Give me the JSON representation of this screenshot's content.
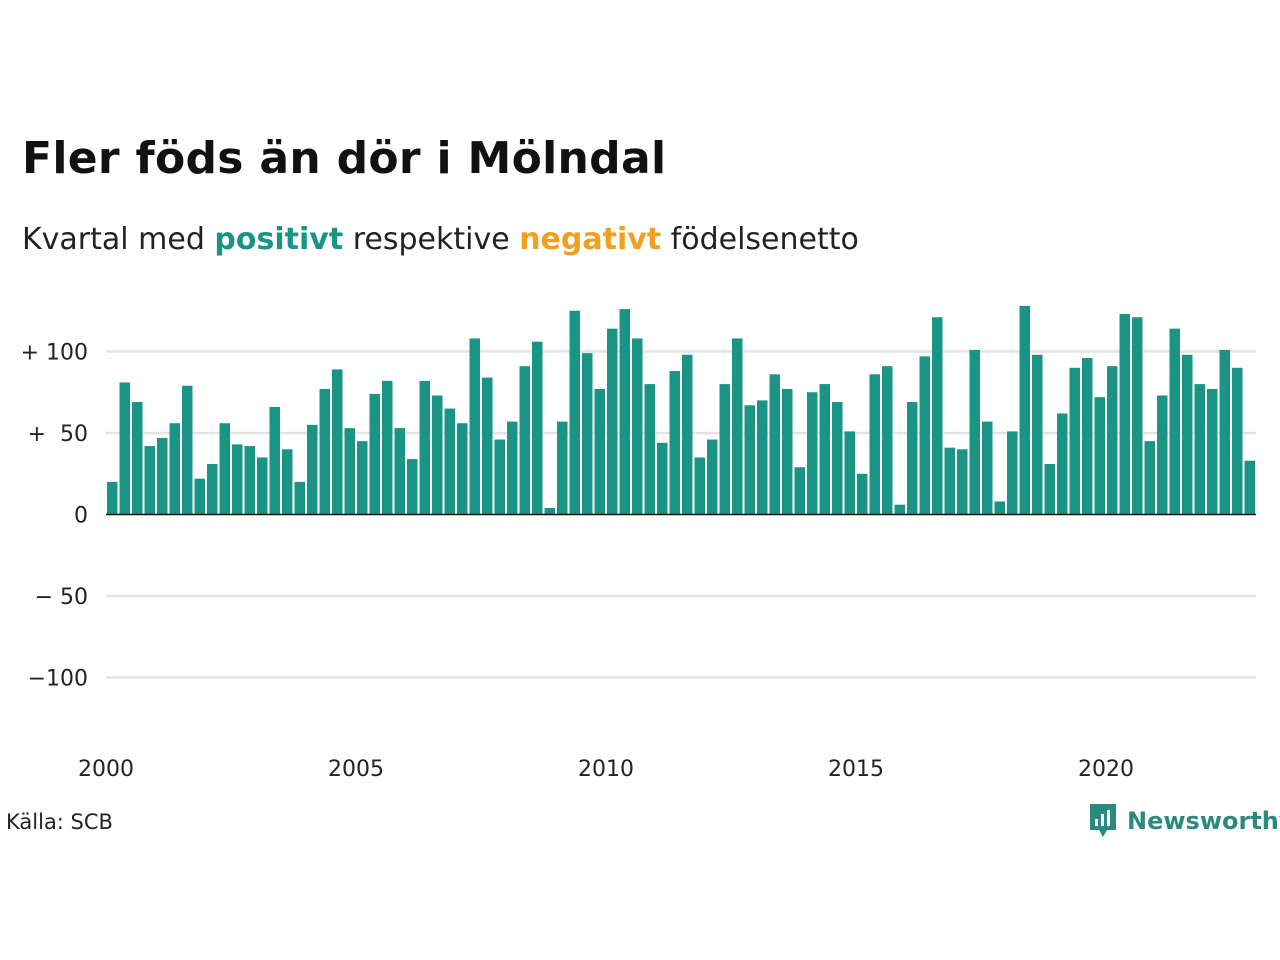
{
  "title": "Fler föds än dör i Mölndal",
  "subtitle": {
    "before": "Kvartal med ",
    "positive": "positivt",
    "middle": " respektive ",
    "negative": "negativt",
    "after": " födelsenetto"
  },
  "source": "Källa: SCB",
  "brand": "Newsworthy",
  "colors": {
    "positive": "#1a9485",
    "negative": "#f0a020",
    "grid": "#e3e3e3",
    "axis": "#111111"
  },
  "chart_data": {
    "type": "bar",
    "ylim": [
      -140,
      130
    ],
    "yticks": [
      {
        "value": 100,
        "label": "+ 100"
      },
      {
        "value": 50,
        "label": "+  50"
      },
      {
        "value": 0,
        "label": "0"
      },
      {
        "value": -50,
        "label": "− 50"
      },
      {
        "value": -100,
        "label": "−100"
      }
    ],
    "xticks": [
      {
        "value": 2000,
        "label": "2000"
      },
      {
        "value": 2005,
        "label": "2005"
      },
      {
        "value": 2010,
        "label": "2010"
      },
      {
        "value": 2015,
        "label": "2015"
      },
      {
        "value": 2020,
        "label": "2020"
      }
    ],
    "start_year": 2000,
    "periods_per_year": 4,
    "values": [
      20,
      81,
      69,
      42,
      47,
      56,
      79,
      22,
      31,
      56,
      43,
      42,
      35,
      66,
      40,
      20,
      55,
      77,
      89,
      53,
      45,
      74,
      82,
      53,
      34,
      82,
      73,
      65,
      56,
      108,
      84,
      46,
      57,
      91,
      106,
      4,
      57,
      125,
      99,
      77,
      114,
      126,
      108,
      80,
      44,
      88,
      98,
      35,
      46,
      80,
      108,
      67,
      70,
      86,
      77,
      29,
      75,
      80,
      69,
      51,
      25,
      86,
      91,
      6,
      69,
      97,
      121,
      41,
      40,
      101,
      57,
      8,
      51,
      128,
      98,
      31,
      62,
      90,
      96,
      72,
      91,
      123,
      121,
      45,
      73,
      114,
      98,
      80,
      77,
      101,
      90,
      33
    ]
  }
}
